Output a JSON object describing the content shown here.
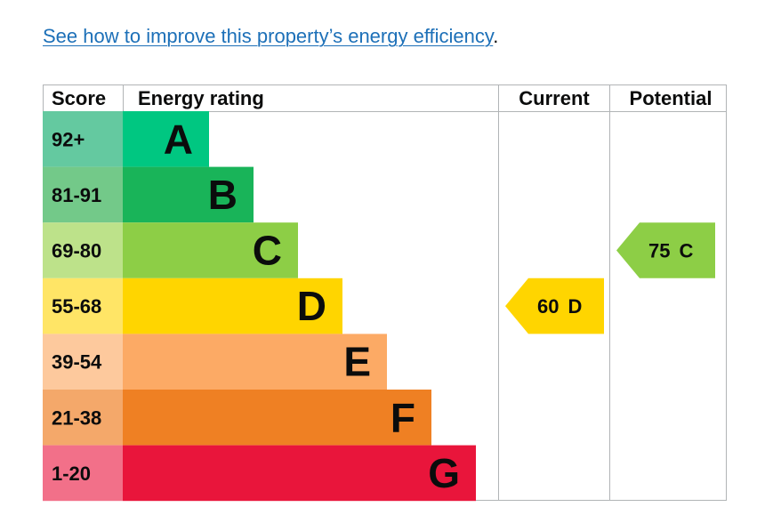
{
  "link": {
    "text": "See how to improve this property’s energy efficiency",
    "trailing": "."
  },
  "chart_data": {
    "type": "table",
    "headers": {
      "score": "Score",
      "rating": "Energy rating",
      "current": "Current",
      "potential": "Potential"
    },
    "bands": [
      {
        "range": "92+",
        "letter": "A",
        "color": "#00c781",
        "score_color": "#64c9a0"
      },
      {
        "range": "81-91",
        "letter": "B",
        "color": "#19b459",
        "score_color": "#73c989"
      },
      {
        "range": "69-80",
        "letter": "C",
        "color": "#8dce46",
        "score_color": "#bde28a"
      },
      {
        "range": "55-68",
        "letter": "D",
        "color": "#ffd500",
        "score_color": "#ffe566"
      },
      {
        "range": "39-54",
        "letter": "E",
        "color": "#fcaa65",
        "score_color": "#fdc99d"
      },
      {
        "range": "21-38",
        "letter": "F",
        "color": "#ef8023",
        "score_color": "#f4a86a"
      },
      {
        "range": "1-20",
        "letter": "G",
        "color": "#e9153b",
        "score_color": "#f27089"
      }
    ],
    "current": {
      "value": 60,
      "letter": "D",
      "band_index": 3,
      "color": "#ffd500"
    },
    "potential": {
      "value": 75,
      "letter": "C",
      "band_index": 2,
      "color": "#8dce46"
    }
  }
}
